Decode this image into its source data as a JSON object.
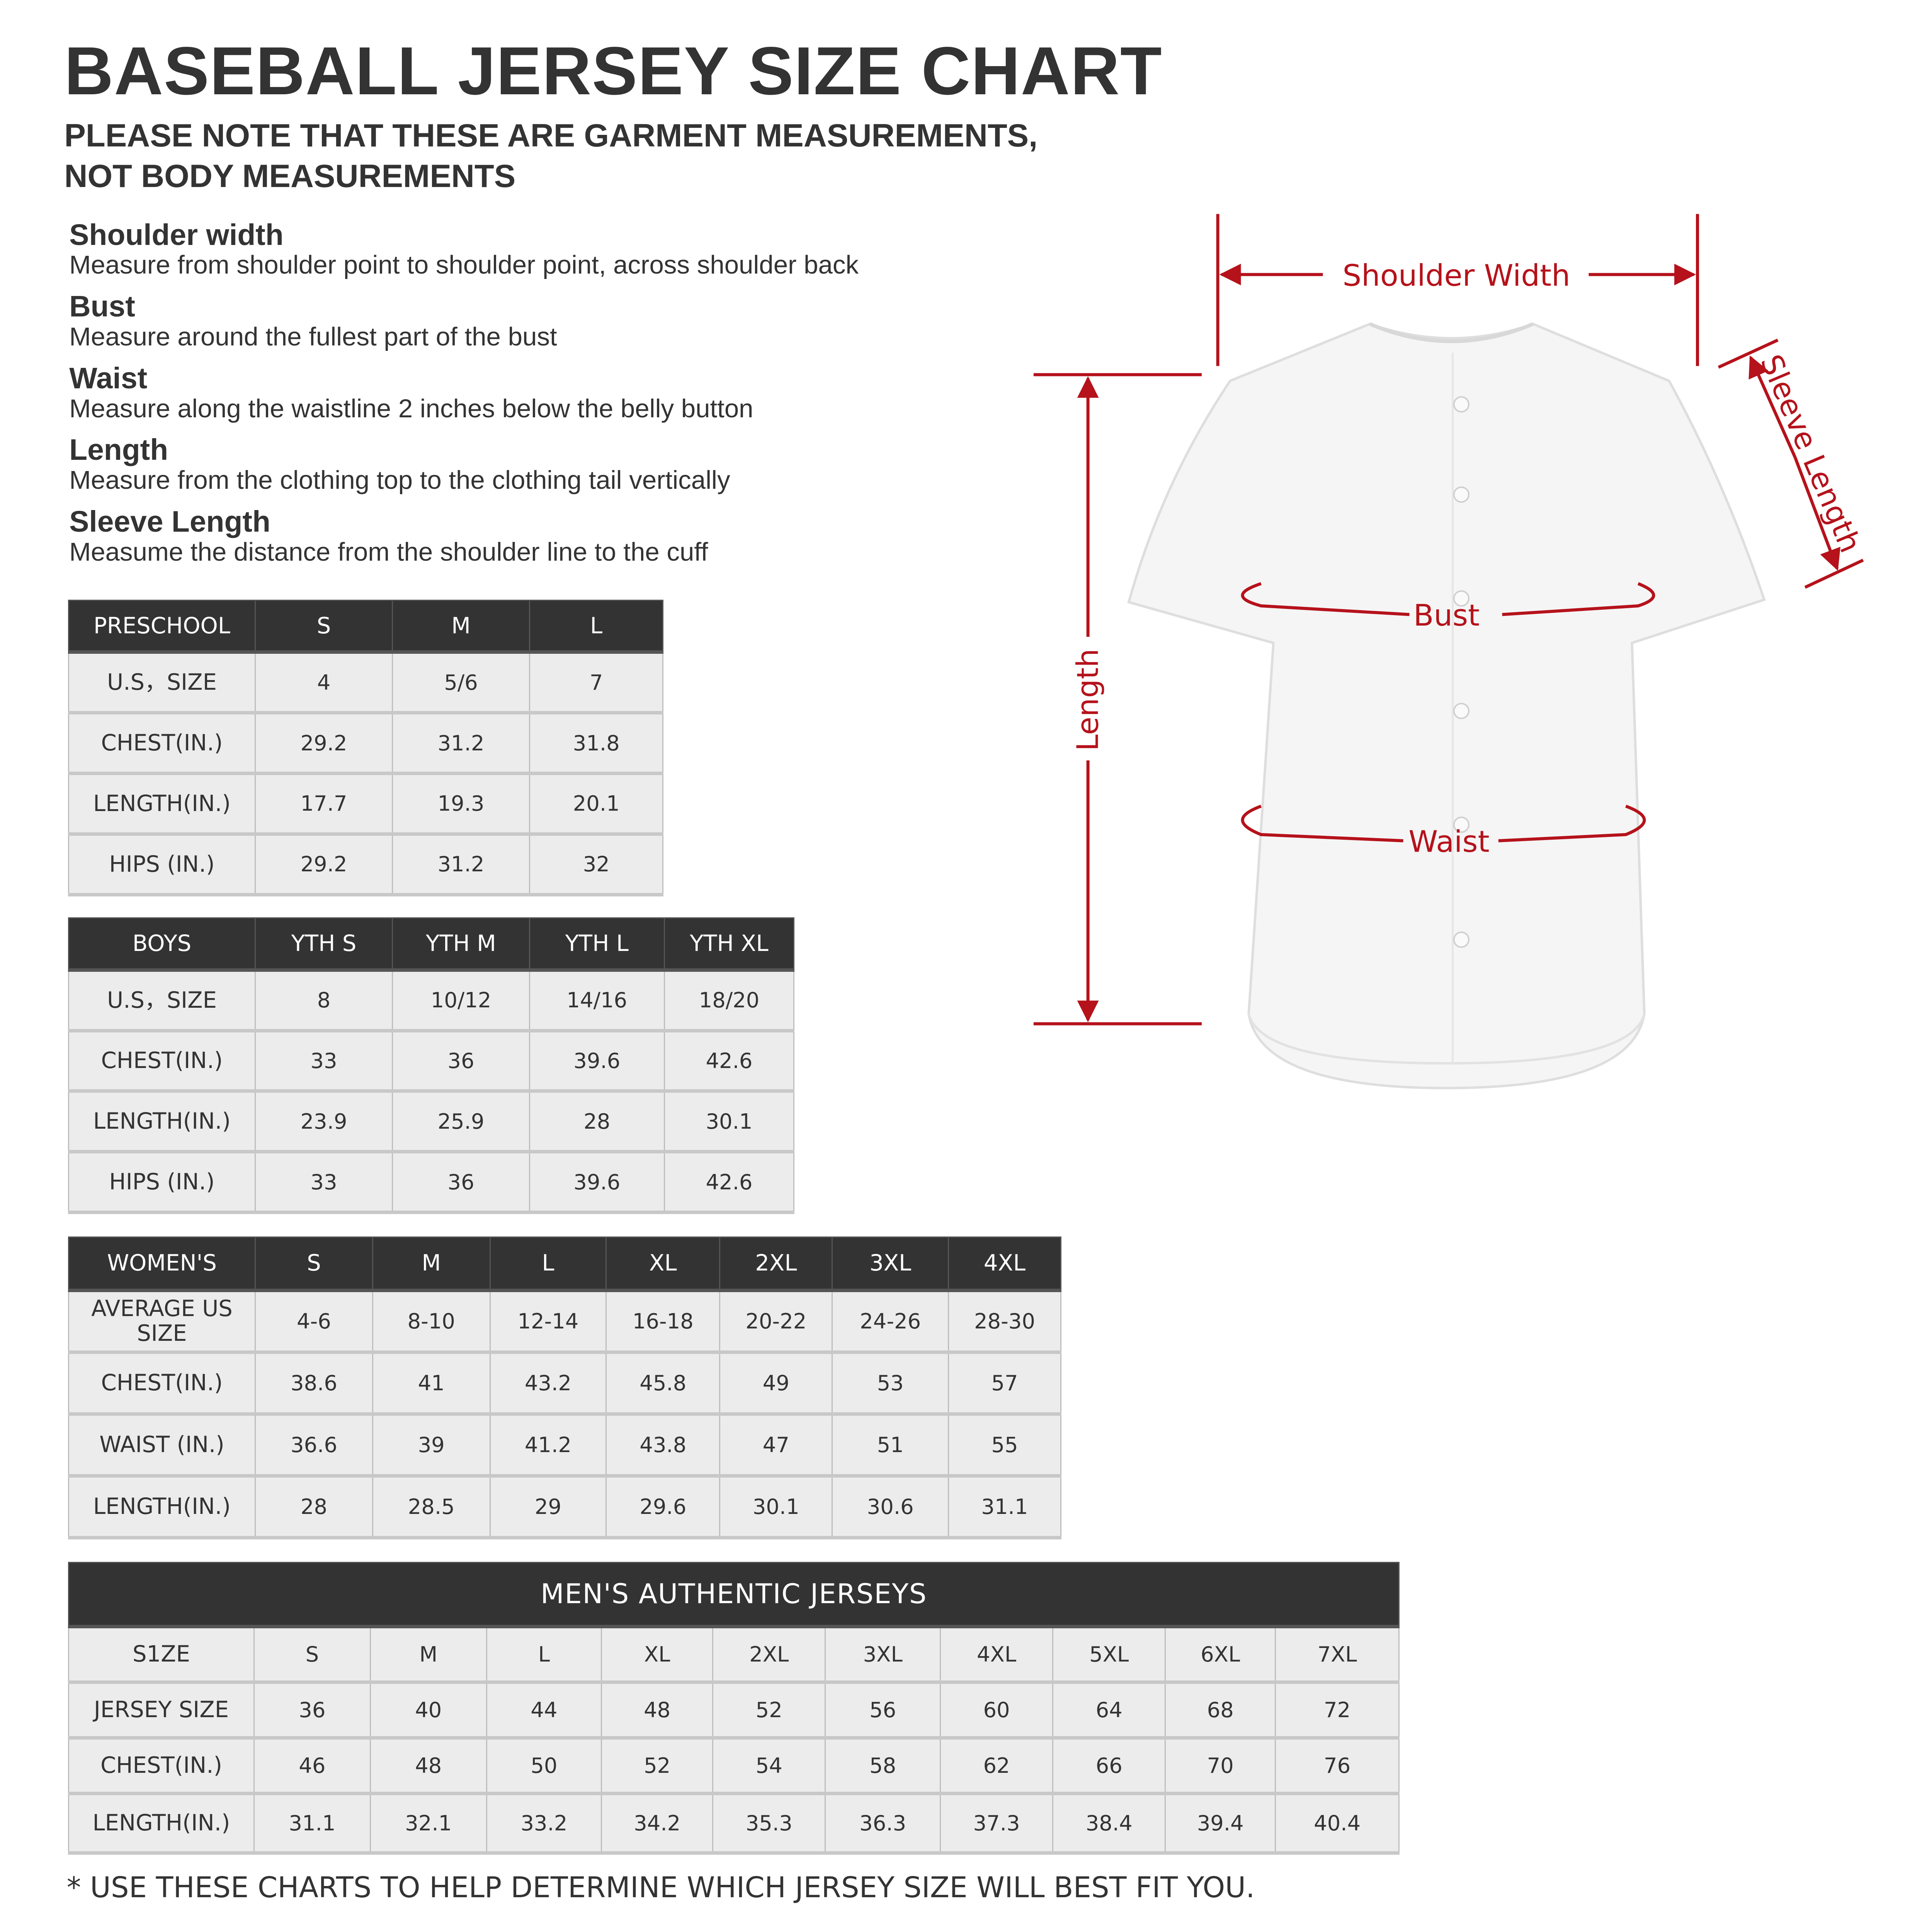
{
  "header": {
    "title": "BASEBALL JERSEY SIZE CHART",
    "subtitle_line1": "PLEASE NOTE THAT THESE ARE GARMENT MEASUREMENTS,",
    "subtitle_line2": "NOT BODY MEASUREMENTS"
  },
  "definitions": [
    {
      "label": "Shoulder width",
      "desc": "Measure from shoulder point to shoulder point, across shoulder back"
    },
    {
      "label": "Bust",
      "desc": "Measure around the fullest part of the bust"
    },
    {
      "label": "Waist",
      "desc": "Measure along the waistline 2 inches below the belly button"
    },
    {
      "label": "Length",
      "desc": "Measure from the clothing top to the clothing tail vertically"
    },
    {
      "label": "Sleeve Length",
      "desc": "Measume the distance from the shoulder line to the cuff"
    }
  ],
  "tables": {
    "preschool": {
      "header": [
        "PRESCHOOL",
        "S",
        "M",
        "L"
      ],
      "rows": [
        [
          "U.S，SIZE",
          "4",
          "5/6",
          "7"
        ],
        [
          "CHEST(IN.)",
          "29.2",
          "31.2",
          "31.8"
        ],
        [
          "LENGTH(IN.)",
          "17.7",
          "19.3",
          "20.1"
        ],
        [
          "HIPS (IN.)",
          "29.2",
          "31.2",
          "32"
        ]
      ]
    },
    "boys": {
      "header": [
        "BOYS",
        "YTH S",
        "YTH M",
        "YTH L",
        "YTH XL"
      ],
      "rows": [
        [
          "U.S，SIZE",
          "8",
          "10/12",
          "14/16",
          "18/20"
        ],
        [
          "CHEST(IN.)",
          "33",
          "36",
          "39.6",
          "42.6"
        ],
        [
          "LENGTH(IN.)",
          "23.9",
          "25.9",
          "28",
          "30.1"
        ],
        [
          "HIPS (IN.)",
          "33",
          "36",
          "39.6",
          "42.6"
        ]
      ]
    },
    "womens": {
      "header": [
        "WOMEN'S",
        "S",
        "M",
        "L",
        "XL",
        "2XL",
        "3XL",
        "4XL"
      ],
      "rows": [
        [
          "AVERAGE US SIZE",
          "4-6",
          "8-10",
          "12-14",
          "16-18",
          "20-22",
          "24-26",
          "28-30"
        ],
        [
          "CHEST(IN.)",
          "38.6",
          "41",
          "43.2",
          "45.8",
          "49",
          "53",
          "57"
        ],
        [
          "WAIST (IN.)",
          "36.6",
          "39",
          "41.2",
          "43.8",
          "47",
          "51",
          "55"
        ],
        [
          "LENGTH(IN.)",
          "28",
          "28.5",
          "29",
          "29.6",
          "30.1",
          "30.6",
          "31.1"
        ]
      ]
    },
    "mens": {
      "title": "MEN'S AUTHENTIC JERSEYS",
      "rows": [
        [
          "S1ZE",
          "S",
          "M",
          "L",
          "XL",
          "2XL",
          "3XL",
          "4XL",
          "5XL",
          "6XL",
          "7XL"
        ],
        [
          "JERSEY SIZE",
          "36",
          "40",
          "44",
          "48",
          "52",
          "56",
          "60",
          "64",
          "68",
          "72"
        ],
        [
          "CHEST(IN.)",
          "46",
          "48",
          "50",
          "52",
          "54",
          "58",
          "62",
          "66",
          "70",
          "76"
        ],
        [
          "LENGTH(IN.)",
          "31.1",
          "32.1",
          "33.2",
          "34.2",
          "35.3",
          "36.3",
          "37.3",
          "38.4",
          "39.4",
          "40.4"
        ]
      ]
    }
  },
  "diagram": {
    "shoulder_width": "Shoulder Width",
    "sleeve_length": "Sleeve Length",
    "length": "Length",
    "bust": "Bust",
    "waist": "Waist",
    "accent_color": "#b5121b"
  },
  "footer": "* USE THESE CHARTS TO HELP DETERMINE WHICH JERSEY SIZE WILL BEST FIT YOU."
}
